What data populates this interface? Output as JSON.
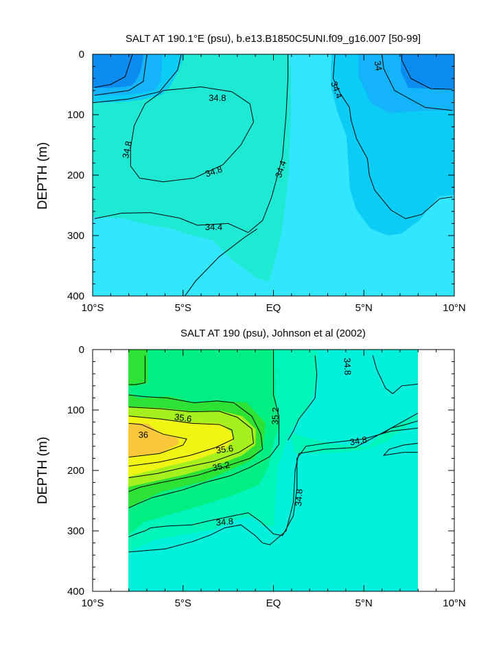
{
  "figure": {
    "type": "contour-plot-pair"
  },
  "chart_data": [
    {
      "type": "contour",
      "title": "SALT AT 190.1°E (psu), b.e13.B1850C5UNI.f09_g16.007 [50-99]",
      "ylabel": "DEPTH (m)",
      "xlabel": "",
      "xlim": [
        -10,
        10
      ],
      "ylim": [
        400,
        0
      ],
      "x_ticks": [
        {
          "value": -10,
          "label": "10°S"
        },
        {
          "value": -5,
          "label": "5°S"
        },
        {
          "value": 0,
          "label": "EQ"
        },
        {
          "value": 5,
          "label": "5°N"
        },
        {
          "value": 10,
          "label": "10°N"
        }
      ],
      "y_ticks": [
        {
          "value": 0,
          "label": "0"
        },
        {
          "value": 100,
          "label": "100"
        },
        {
          "value": 200,
          "label": "200"
        },
        {
          "value": 300,
          "label": "300"
        },
        {
          "value": 400,
          "label": "400"
        }
      ],
      "colors": {
        "lt34": "#0A8CF0",
        "s34_34.2": "#14B4FA",
        "s34.2_34.4": "#0ACCF5",
        "s34.4_34.6": "#32E6FF",
        "s34.6_34.8": "#1EEAD4",
        "s34.8_35.0": "#0AF0AA",
        "line": "#000000"
      },
      "contours": [
        {
          "level": 34.0,
          "points": [
            [
              -9.9,
              55
            ],
            [
              -9,
              50
            ],
            [
              -8.2,
              37
            ],
            [
              -7.8,
              0
            ]
          ]
        },
        {
          "level": 34.0,
          "points": [
            [
              9.9,
              58
            ],
            [
              8.7,
              57
            ],
            [
              7.6,
              40
            ],
            [
              7.1,
              10
            ],
            [
              7.1,
              0
            ]
          ]
        },
        {
          "level": 34.2,
          "points": [
            [
              -9.9,
              68
            ],
            [
              -8,
              60
            ],
            [
              -7.2,
              45
            ],
            [
              -7,
              0
            ]
          ]
        },
        {
          "level": 34.2,
          "points": [
            [
              9.9,
              93
            ],
            [
              8.4,
              88
            ],
            [
              6.7,
              60
            ],
            [
              6.1,
              24
            ],
            [
              6,
              0
            ]
          ]
        },
        {
          "level": 34.4,
          "points": [
            [
              -9.9,
              80
            ],
            [
              -8,
              74
            ],
            [
              -6.3,
              62
            ],
            [
              -5.3,
              26
            ],
            [
              -5.1,
              0
            ]
          ]
        },
        {
          "level": 34.4,
          "points": [
            [
              3.4,
              0
            ],
            [
              3.3,
              40
            ],
            [
              3.7,
              65
            ],
            [
              4.2,
              88
            ],
            [
              4.3,
              110
            ],
            [
              4.6,
              140
            ],
            [
              5.2,
              173
            ],
            [
              5.3,
              200
            ],
            [
              5.6,
              225
            ],
            [
              6.5,
              258
            ],
            [
              7.3,
              272
            ],
            [
              8.2,
              265
            ],
            [
              9.2,
              239
            ],
            [
              9.9,
              236
            ]
          ]
        },
        {
          "level": 34.4,
          "points": [
            [
              -9.9,
              272
            ],
            [
              -8.4,
              263
            ],
            [
              -6.8,
              262
            ],
            [
              -5.2,
              271
            ],
            [
              -4.2,
              283
            ],
            [
              -2.5,
              280
            ],
            [
              -1.4,
              295
            ],
            [
              -0.6,
              275
            ],
            [
              -0.1,
              236
            ],
            [
              0.5,
              170
            ],
            [
              0.7,
              100
            ],
            [
              0.8,
              40
            ],
            [
              0.8,
              0
            ]
          ]
        },
        {
          "level": 34.4,
          "points": [
            [
              -4.9,
              400
            ],
            [
              -4.3,
              375
            ],
            [
              -3,
              335
            ],
            [
              -1.6,
              303
            ],
            [
              -0.9,
              289
            ]
          ]
        },
        {
          "level": 34.8,
          "points": [
            [
              -6.1,
              60
            ],
            [
              -4,
              54
            ],
            [
              -2.3,
              62
            ],
            [
              -1.3,
              82
            ],
            [
              -1.1,
              112
            ],
            [
              -1.8,
              150
            ],
            [
              -2.8,
              183
            ],
            [
              -4.4,
              205
            ],
            [
              -6.1,
              211
            ],
            [
              -7.4,
              205
            ],
            [
              -7.9,
              185
            ],
            [
              -7.9,
              155
            ],
            [
              -7.7,
              118
            ],
            [
              -7.1,
              82
            ],
            [
              -6.1,
              60
            ]
          ]
        }
      ],
      "contour_labels": [
        {
          "text": "34.8",
          "x": -3.1,
          "y": 72,
          "angle": 0
        },
        {
          "text": "34.8",
          "x": -8.1,
          "y": 158,
          "angle": -78
        },
        {
          "text": "34.8",
          "x": -3.3,
          "y": 194,
          "angle": -18
        },
        {
          "text": "34.4",
          "x": -3.3,
          "y": 286,
          "angle": 0
        },
        {
          "text": "34.4",
          "x": 0.4,
          "y": 190,
          "angle": -72
        },
        {
          "text": "34.4",
          "x": 3.5,
          "y": 59,
          "angle": 70
        },
        {
          "text": "34",
          "x": 5.8,
          "y": 19,
          "angle": 80
        }
      ]
    },
    {
      "type": "contour",
      "title": "SALT AT 190 (psu), Johnson et al (2002)",
      "ylabel": "DEPTH (m)",
      "xlabel": "",
      "xlim": [
        -10,
        10
      ],
      "ylim": [
        400,
        0
      ],
      "data_xrange": [
        -8,
        8
      ],
      "data_yrange": [
        10,
        400
      ],
      "x_ticks": [
        {
          "value": -10,
          "label": "10°S"
        },
        {
          "value": -5,
          "label": "5°S"
        },
        {
          "value": 0,
          "label": "EQ"
        },
        {
          "value": 5,
          "label": "5°N"
        },
        {
          "value": 10,
          "label": "10°N"
        }
      ],
      "y_ticks": [
        {
          "value": 0,
          "label": "0"
        },
        {
          "value": 100,
          "label": "100"
        },
        {
          "value": 200,
          "label": "200"
        },
        {
          "value": 300,
          "label": "300"
        },
        {
          "value": 400,
          "label": "400"
        }
      ],
      "colors": {
        "s34.6_34.8": "#00F0DC",
        "s34.8_35.0": "#00F5B8",
        "s35.0_35.2": "#00EE82",
        "s35.2_35.4": "#2DE234",
        "s35.4_35.6": "#A6F01E",
        "s35.6_35.8": "#F0F514",
        "s35.8_36.0": "#F8EE16",
        "gt36": "#FBC83C",
        "line": "#000000"
      },
      "contours": [
        {
          "level": 35.0,
          "points": [
            [
              -8,
              310
            ],
            [
              -7.6,
              305
            ],
            [
              -7.1,
              300
            ],
            [
              -6.8,
              295
            ],
            [
              -5.9,
              292
            ],
            [
              -4.5,
              290
            ],
            [
              -3.5,
              283
            ],
            [
              -1.4,
              270
            ],
            [
              -0.7,
              285
            ],
            [
              0,
              305
            ],
            [
              0.5,
              308
            ],
            [
              1.1,
              275
            ],
            [
              1.3,
              230
            ],
            [
              1.3,
              180
            ],
            [
              1.8,
              160
            ],
            [
              2.9,
              155
            ],
            [
              5,
              148
            ],
            [
              6.5,
              135
            ],
            [
              8,
              130
            ]
          ]
        },
        {
          "level": 34.8,
          "points": [
            [
              -8,
              335
            ],
            [
              -6,
              330
            ],
            [
              -4.5,
              318
            ],
            [
              -3.5,
              307
            ],
            [
              -2.7,
              295
            ],
            [
              -1.8,
              290
            ],
            [
              -1,
              308
            ],
            [
              -0.6,
              320
            ],
            [
              -0.2,
              323
            ],
            [
              0.7,
              300
            ],
            [
              1.1,
              253
            ],
            [
              1.2,
              200
            ],
            [
              1.4,
              172
            ],
            [
              2.8,
              165
            ],
            [
              4.5,
              162
            ],
            [
              6.2,
              135
            ],
            [
              8,
              105
            ]
          ]
        },
        {
          "level": 34.8,
          "points": [
            [
              8,
              118
            ],
            [
              7.2,
              125
            ],
            [
              6.5,
              130
            ],
            [
              6.1,
              138
            ]
          ]
        },
        {
          "level": 34.6,
          "points": [
            [
              8,
              155
            ],
            [
              7.2,
              158
            ],
            [
              6.4,
              165
            ],
            [
              6.1,
              175
            ],
            [
              7.2,
              170
            ],
            [
              8,
              170
            ]
          ]
        },
        {
          "level": 34.6,
          "points": [
            [
              8,
              57
            ],
            [
              7.1,
              60
            ],
            [
              6.6,
              73
            ],
            [
              6.2,
              64
            ],
            [
              5.7,
              32
            ],
            [
              5.5,
              10
            ]
          ]
        },
        {
          "level": 34.8,
          "points": [
            [
              2.3,
              10
            ],
            [
              2.4,
              40
            ],
            [
              2.3,
              80
            ],
            [
              1.9,
              96
            ],
            [
              1.4,
              115
            ],
            [
              1.1,
              135
            ],
            [
              0.8,
              150
            ]
          ]
        },
        {
          "level": 35.2,
          "points": [
            [
              -8,
              262
            ],
            [
              -7.5,
              255
            ],
            [
              -6.7,
              245
            ],
            [
              -5,
              232
            ],
            [
              -3.8,
              220
            ],
            [
              -2.4,
              209
            ],
            [
              -1.3,
              195
            ],
            [
              -0.2,
              177
            ],
            [
              0.3,
              157
            ],
            [
              0.3,
              140
            ],
            [
              0.3,
              110
            ],
            [
              0,
              75
            ],
            [
              0,
              10
            ]
          ]
        },
        {
          "level": 35.4,
          "points": [
            [
              -8,
              235
            ],
            [
              -7.4,
              228
            ],
            [
              -6.2,
              220
            ],
            [
              -4.2,
              208
            ],
            [
              -2.6,
              193
            ],
            [
              -1.3,
              180
            ],
            [
              -0.6,
              165
            ],
            [
              -0.7,
              140
            ],
            [
              -1.2,
              110
            ],
            [
              -2.2,
              88
            ],
            [
              -3.1,
              85
            ],
            [
              -4.4,
              88
            ],
            [
              -5.9,
              80
            ],
            [
              -7.1,
              78
            ],
            [
              -8,
              75
            ]
          ]
        },
        {
          "level": 35.4,
          "points": [
            [
              -7.1,
              10
            ],
            [
              -7.1,
              55
            ],
            [
              -7.6,
              58
            ],
            [
              -8,
              58
            ]
          ]
        },
        {
          "level": 35.6,
          "points": [
            [
              -8,
              212
            ],
            [
              -6.4,
              205
            ],
            [
              -5.1,
              196
            ],
            [
              -3.3,
              185
            ],
            [
              -1.9,
              170
            ],
            [
              -1.1,
              155
            ],
            [
              -1.2,
              131
            ],
            [
              -2,
              112
            ],
            [
              -3,
              102
            ],
            [
              -4.6,
              103
            ],
            [
              -6.2,
              98
            ],
            [
              -8,
              95
            ]
          ]
        },
        {
          "level": 35.8,
          "points": [
            [
              -8,
              193
            ],
            [
              -6.3,
              186
            ],
            [
              -4.6,
              175
            ],
            [
              -3.2,
              162
            ],
            [
              -2.2,
              148
            ],
            [
              -2.3,
              133
            ],
            [
              -3,
              124
            ],
            [
              -4.5,
              122
            ],
            [
              -6.2,
              115
            ],
            [
              -8,
              110
            ]
          ]
        },
        {
          "level": 36.0,
          "points": [
            [
              -8,
              178
            ],
            [
              -6.3,
              172
            ],
            [
              -5,
              158
            ],
            [
              -4.8,
              148
            ],
            [
              -6.1,
              140
            ],
            [
              -7.3,
              124
            ],
            [
              -8,
              122
            ]
          ]
        }
      ],
      "contour_labels": [
        {
          "text": "35.6",
          "x": -5,
          "y": 113,
          "angle": 8
        },
        {
          "text": "36",
          "x": -7.2,
          "y": 141,
          "angle": 0
        },
        {
          "text": "35.6",
          "x": -2.7,
          "y": 165,
          "angle": -8
        },
        {
          "text": "35.2",
          "x": -2.9,
          "y": 193,
          "angle": -12
        },
        {
          "text": "35.2",
          "x": 0.1,
          "y": 110,
          "angle": -88
        },
        {
          "text": "34.8",
          "x": -2.7,
          "y": 285,
          "angle": -5
        },
        {
          "text": "34.8",
          "x": 1.4,
          "y": 245,
          "angle": -86
        },
        {
          "text": "34.8",
          "x": 4.7,
          "y": 151,
          "angle": -10
        },
        {
          "text": "34.8",
          "x": 4.1,
          "y": 28,
          "angle": 88
        }
      ]
    }
  ]
}
